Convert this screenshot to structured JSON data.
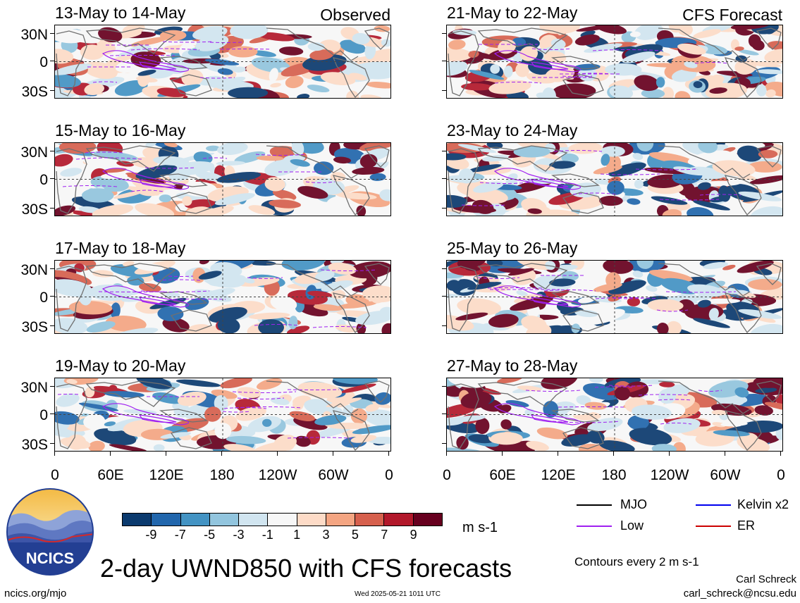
{
  "header": {
    "left_label": "Observed",
    "right_label": "CFS Forecast"
  },
  "panels": {
    "observed": [
      "13-May to 14-May",
      "15-May to 16-May",
      "17-May to 18-May",
      "19-May to 20-May"
    ],
    "forecast": [
      "21-May to 22-May",
      "23-May to 24-May",
      "25-May to 26-May",
      "27-May to 28-May"
    ]
  },
  "lat_labels": [
    "30N",
    "0",
    "30S"
  ],
  "lon_labels": [
    "0",
    "60E",
    "120E",
    "180",
    "120W",
    "60W",
    "0"
  ],
  "colorbar": {
    "ticks": [
      "-9",
      "-7",
      "-5",
      "-3",
      "-1",
      "1",
      "3",
      "5",
      "7",
      "9"
    ],
    "units": "m s-1",
    "colors": [
      "#0b3a6e",
      "#2166ac",
      "#4393c3",
      "#92c5de",
      "#d1e5f0",
      "#f7f7f7",
      "#fddbc7",
      "#f4a582",
      "#d6604d",
      "#b2182b",
      "#67001f"
    ]
  },
  "legend": {
    "items": [
      {
        "label": "MJO",
        "color": "#000000"
      },
      {
        "label": "Kelvin x2",
        "color": "#0000ee"
      },
      {
        "label": "Low",
        "color": "#a020f0"
      },
      {
        "label": "ER",
        "color": "#cc0000"
      }
    ],
    "note": "Contours every 2 m s-1"
  },
  "title": "2-day UWND850 with CFS forecasts",
  "logo_text": "NCICS",
  "footer": {
    "url": "ncics.org/mjo",
    "timestamp": "Wed 2025-05-21 1011 UTC",
    "author": "Carl Schreck",
    "email": "carl_schreck@ncsu.edu"
  }
}
